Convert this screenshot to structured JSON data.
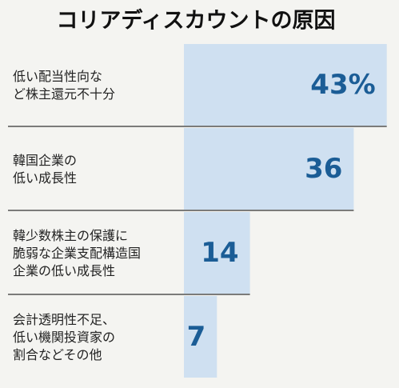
{
  "chart_data": {
    "type": "bar",
    "orientation": "horizontal",
    "title": "コリアディスカウントの原因",
    "categories": [
      [
        "低い配当性向な",
        "ど株主還元不十分"
      ],
      [
        "韓国企業の",
        "低い成長性"
      ],
      [
        "韓少数株主の保護に",
        "脆弱な企業支配構造国",
        "企業の低い成長性"
      ],
      [
        "会計透明性不足、",
        "低い機関投資家の",
        "割合などその他"
      ]
    ],
    "values": [
      43,
      36,
      14,
      7
    ],
    "value_labels": [
      "43%",
      "36",
      "14",
      "7"
    ],
    "color": "#cfe0f1",
    "label_color": "#1b5d96"
  }
}
